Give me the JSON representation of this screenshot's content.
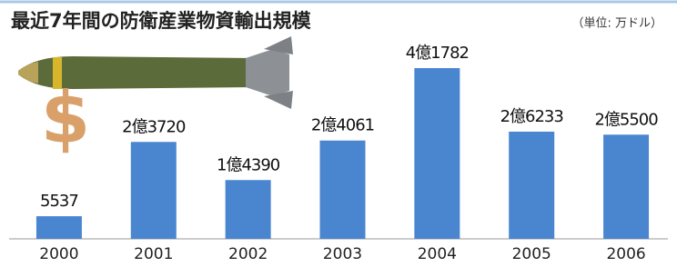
{
  "chart_data": {
    "type": "bar",
    "title": "最近7年間の防衛産業物資輸出規模",
    "unit_label": "（単位: 万ドル）",
    "categories": [
      "2000",
      "2001",
      "2002",
      "2003",
      "2004",
      "2005",
      "2006"
    ],
    "values": [
      5537,
      23720,
      14390,
      24061,
      41782,
      26233,
      25500
    ],
    "value_labels": [
      "5537",
      "2億3720",
      "1億4390",
      "2億4061",
      "4億1782",
      "2億6233",
      "2億5500"
    ],
    "color": "#4a86d0"
  }
}
